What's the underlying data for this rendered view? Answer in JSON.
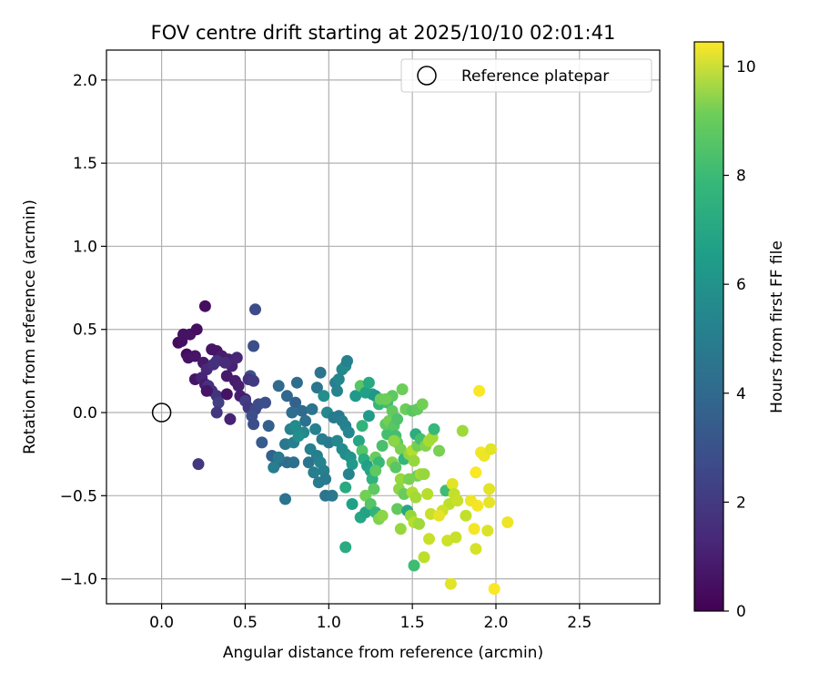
{
  "chart_data": {
    "type": "scatter",
    "title": "FOV centre drift starting at 2025/10/10 02:01:41",
    "xlabel": "Angular distance from reference (arcmin)",
    "ylabel": "Rotation from reference (arcmin)",
    "xlim": [
      -0.33,
      2.98
    ],
    "ylim": [
      -1.15,
      2.18
    ],
    "xticks": [
      0.0,
      0.5,
      1.0,
      1.5,
      2.0,
      2.5
    ],
    "xtick_labels": [
      "0.0",
      "0.5",
      "1.0",
      "1.5",
      "2.0",
      "2.5"
    ],
    "yticks": [
      -1.0,
      -0.5,
      0.0,
      0.5,
      1.0,
      1.5,
      2.0
    ],
    "ytick_labels": [
      "−1.0",
      "−0.5",
      "0.0",
      "0.5",
      "1.0",
      "1.5",
      "2.0"
    ],
    "grid": true,
    "legend": {
      "placement": "top-right",
      "entries": [
        "Reference platepar"
      ]
    },
    "reference_point": {
      "x": 0.0,
      "y": 0.0,
      "label": "Reference platepar"
    },
    "colorbar": {
      "label": "Hours from first FF file",
      "range": [
        0,
        10.45
      ],
      "ticks": [
        0,
        2,
        4,
        6,
        8,
        10
      ],
      "tick_labels": [
        "0",
        "2",
        "4",
        "6",
        "8",
        "10"
      ],
      "colormap": "viridis"
    },
    "series": [
      {
        "name": "FOV centre drift",
        "points": [
          [
            0.26,
            0.64,
            0.4
          ],
          [
            0.1,
            0.42,
            0.3
          ],
          [
            0.12,
            0.43,
            0.4
          ],
          [
            0.13,
            0.47,
            0.5
          ],
          [
            0.17,
            0.47,
            0.5
          ],
          [
            0.21,
            0.5,
            0.4
          ],
          [
            0.15,
            0.35,
            0.3
          ],
          [
            0.16,
            0.33,
            0.5
          ],
          [
            0.2,
            0.34,
            0.6
          ],
          [
            0.25,
            0.3,
            0.7
          ],
          [
            0.3,
            0.38,
            0.6
          ],
          [
            0.33,
            0.37,
            0.6
          ],
          [
            0.36,
            0.34,
            0.8
          ],
          [
            0.4,
            0.32,
            0.9
          ],
          [
            0.42,
            0.28,
            1.0
          ],
          [
            0.45,
            0.33,
            1.1
          ],
          [
            0.27,
            0.26,
            1.2
          ],
          [
            0.31,
            0.29,
            1.4
          ],
          [
            0.33,
            0.31,
            1.5
          ],
          [
            0.38,
            0.3,
            1.3
          ],
          [
            0.2,
            0.2,
            0.6
          ],
          [
            0.24,
            0.21,
            1.1
          ],
          [
            0.26,
            0.17,
            0.8
          ],
          [
            0.28,
            0.16,
            1.5
          ],
          [
            0.3,
            0.13,
            1.4
          ],
          [
            0.33,
            0.1,
            1.6
          ],
          [
            0.39,
            0.22,
            0.7
          ],
          [
            0.44,
            0.19,
            0.8
          ],
          [
            0.46,
            0.16,
            0.9
          ],
          [
            0.47,
            0.1,
            0.9
          ],
          [
            0.27,
            0.13,
            0.6
          ],
          [
            0.39,
            0.11,
            0.5
          ],
          [
            0.5,
            0.08,
            0.7
          ],
          [
            0.53,
            0.22,
            2.6
          ],
          [
            0.52,
            0.2,
            1.5
          ],
          [
            0.55,
            0.19,
            1.8
          ],
          [
            0.34,
            0.06,
            2.0
          ],
          [
            0.33,
            0.0,
            1.7
          ],
          [
            0.41,
            -0.04,
            1.0
          ],
          [
            0.5,
            0.07,
            1.9
          ],
          [
            0.52,
            0.03,
            1.7
          ],
          [
            0.56,
            0.02,
            2.3
          ],
          [
            0.58,
            0.05,
            2.4
          ],
          [
            0.62,
            0.06,
            2.6
          ],
          [
            0.54,
            -0.02,
            2.6
          ],
          [
            0.55,
            -0.07,
            2.5
          ],
          [
            0.56,
            0.62,
            2.4
          ],
          [
            0.55,
            0.4,
            2.5
          ],
          [
            0.22,
            -0.31,
            1.7
          ],
          [
            0.6,
            -0.18,
            3.0
          ],
          [
            0.66,
            -0.26,
            3.3
          ],
          [
            0.69,
            -0.3,
            3.5
          ],
          [
            0.75,
            -0.3,
            3.7
          ],
          [
            0.79,
            -0.3,
            3.8
          ],
          [
            0.74,
            -0.52,
            4.0
          ],
          [
            0.67,
            -0.33,
            4.4
          ],
          [
            0.7,
            -0.27,
            4.3
          ],
          [
            0.74,
            -0.19,
            4.2
          ],
          [
            0.79,
            -0.18,
            4.5
          ],
          [
            0.77,
            -0.1,
            4.7
          ],
          [
            0.64,
            -0.08,
            3.2
          ],
          [
            0.7,
            0.16,
            3.6
          ],
          [
            0.75,
            0.1,
            3.5
          ],
          [
            0.8,
            0.06,
            3.3
          ],
          [
            0.81,
            0.18,
            3.7
          ],
          [
            0.78,
            0.0,
            3.7
          ],
          [
            0.84,
            0.01,
            3.6
          ],
          [
            0.86,
            -0.05,
            3.9
          ],
          [
            0.9,
            0.02,
            4.0
          ],
          [
            0.93,
            0.15,
            4.1
          ],
          [
            0.95,
            0.24,
            4.0
          ],
          [
            0.97,
            0.1,
            5.2
          ],
          [
            0.99,
            0.0,
            4.9
          ],
          [
            0.92,
            -0.1,
            4.6
          ],
          [
            0.96,
            -0.16,
            4.4
          ],
          [
            1.0,
            -0.18,
            4.3
          ],
          [
            0.89,
            -0.22,
            4.6
          ],
          [
            0.93,
            -0.26,
            4.5
          ],
          [
            0.95,
            -0.3,
            4.7
          ],
          [
            0.97,
            -0.35,
            4.5
          ],
          [
            0.98,
            -0.4,
            4.3
          ],
          [
            0.98,
            -0.5,
            4.0
          ],
          [
            1.02,
            -0.5,
            4.2
          ],
          [
            0.88,
            -0.3,
            4.1
          ],
          [
            0.91,
            -0.36,
            4.5
          ],
          [
            0.94,
            -0.42,
            4.3
          ],
          [
            0.85,
            -0.12,
            4.9
          ],
          [
            0.82,
            -0.14,
            5.2
          ],
          [
            0.8,
            -0.08,
            5.0
          ],
          [
            1.04,
            0.18,
            4.4
          ],
          [
            1.06,
            0.2,
            4.8
          ],
          [
            1.08,
            0.26,
            4.9
          ],
          [
            1.1,
            0.28,
            5.0
          ],
          [
            1.11,
            0.31,
            4.6
          ],
          [
            1.05,
            0.13,
            4.7
          ],
          [
            1.03,
            -0.03,
            4.3
          ],
          [
            1.06,
            -0.02,
            4.3
          ],
          [
            1.08,
            -0.05,
            4.5
          ],
          [
            1.1,
            -0.08,
            4.6
          ],
          [
            1.12,
            -0.12,
            4.8
          ],
          [
            1.05,
            -0.17,
            4.9
          ],
          [
            1.08,
            -0.22,
            5.0
          ],
          [
            1.1,
            -0.25,
            5.1
          ],
          [
            1.13,
            -0.27,
            5.3
          ],
          [
            1.14,
            -0.31,
            5.6
          ],
          [
            1.12,
            -0.37,
            4.7
          ],
          [
            1.1,
            -0.45,
            6.3
          ],
          [
            1.14,
            -0.55,
            5.9
          ],
          [
            1.19,
            -0.63,
            6.2
          ],
          [
            1.22,
            -0.6,
            6.0
          ],
          [
            1.1,
            -0.81,
            6.4
          ],
          [
            1.16,
            0.1,
            5.6
          ],
          [
            1.19,
            0.16,
            7.7
          ],
          [
            1.22,
            0.12,
            5.9
          ],
          [
            1.24,
            0.18,
            6.3
          ],
          [
            1.26,
            0.11,
            5.8
          ],
          [
            1.28,
            0.1,
            5.5
          ],
          [
            1.3,
            0.05,
            6.9
          ],
          [
            1.31,
            0.08,
            8.0
          ],
          [
            1.35,
            0.06,
            7.2
          ],
          [
            1.24,
            -0.02,
            5.7
          ],
          [
            1.2,
            -0.08,
            6.8
          ],
          [
            1.18,
            -0.17,
            6.2
          ],
          [
            1.2,
            -0.23,
            7.6
          ],
          [
            1.21,
            -0.28,
            6.5
          ],
          [
            1.23,
            -0.32,
            5.9
          ],
          [
            1.25,
            -0.35,
            6.1
          ],
          [
            1.26,
            -0.4,
            6.7
          ],
          [
            1.27,
            -0.46,
            7.8
          ],
          [
            1.22,
            -0.5,
            8.2
          ],
          [
            1.25,
            -0.55,
            7.6
          ],
          [
            1.28,
            -0.6,
            6.8
          ],
          [
            1.3,
            -0.64,
            8.4
          ],
          [
            1.32,
            -0.62,
            8.6
          ],
          [
            1.28,
            -0.27,
            8.0
          ],
          [
            1.3,
            -0.3,
            7.0
          ],
          [
            1.32,
            -0.2,
            7.4
          ],
          [
            1.35,
            -0.13,
            7.3
          ],
          [
            1.34,
            -0.07,
            7.8
          ],
          [
            1.36,
            -0.05,
            8.2
          ],
          [
            1.39,
            -0.08,
            7.7
          ],
          [
            1.4,
            -0.14,
            7.3
          ],
          [
            1.41,
            -0.18,
            7.9
          ],
          [
            1.43,
            -0.22,
            8.3
          ],
          [
            1.38,
            -0.3,
            8.5
          ],
          [
            1.4,
            -0.33,
            7.7
          ],
          [
            1.43,
            -0.4,
            8.8
          ],
          [
            1.42,
            -0.46,
            8.6
          ],
          [
            1.45,
            -0.49,
            8.0
          ],
          [
            1.41,
            -0.58,
            7.9
          ],
          [
            1.43,
            -0.7,
            8.8
          ],
          [
            1.47,
            -0.59,
            6.2
          ],
          [
            1.5,
            -0.48,
            9.2
          ],
          [
            1.52,
            -0.51,
            9.0
          ],
          [
            1.49,
            -0.62,
            8.8
          ],
          [
            1.51,
            -0.66,
            9.3
          ],
          [
            1.54,
            -0.67,
            8.9
          ],
          [
            1.53,
            -0.38,
            8.2
          ],
          [
            1.55,
            -0.37,
            9.0
          ],
          [
            1.57,
            -0.37,
            8.8
          ],
          [
            1.45,
            -0.28,
            6.9
          ],
          [
            1.48,
            -0.25,
            8.7
          ],
          [
            1.5,
            -0.23,
            9.3
          ],
          [
            1.51,
            -0.29,
            8.8
          ],
          [
            1.53,
            -0.2,
            8.2
          ],
          [
            1.52,
            -0.13,
            6.5
          ],
          [
            1.55,
            -0.16,
            7.3
          ],
          [
            1.58,
            -0.2,
            8.5
          ],
          [
            1.6,
            -0.17,
            9.1
          ],
          [
            1.62,
            -0.15,
            9.0
          ],
          [
            1.59,
            -0.49,
            9.3
          ],
          [
            1.61,
            -0.61,
            9.6
          ],
          [
            1.6,
            -0.76,
            9.6
          ],
          [
            1.57,
            -0.87,
            9.4
          ],
          [
            1.51,
            -0.92,
            7.2
          ],
          [
            1.38,
            0.1,
            7.8
          ],
          [
            1.44,
            0.14,
            8.1
          ],
          [
            1.46,
            0.02,
            8.1
          ],
          [
            1.5,
            0.01,
            7.7
          ],
          [
            1.53,
            0.02,
            7.9
          ],
          [
            1.56,
            0.05,
            8.2
          ],
          [
            1.38,
            0.01,
            7.9
          ],
          [
            1.41,
            -0.04,
            7.5
          ],
          [
            1.28,
            -0.35,
            7.8
          ],
          [
            1.48,
            -0.4,
            8.3
          ],
          [
            1.66,
            -0.23,
            8.3
          ],
          [
            1.7,
            -0.47,
            7.2
          ],
          [
            1.72,
            -0.55,
            9.4
          ],
          [
            1.68,
            -0.59,
            9.7
          ],
          [
            1.66,
            -0.62,
            10.1
          ],
          [
            1.71,
            -0.77,
            9.7
          ],
          [
            1.74,
            -0.43,
            10.0
          ],
          [
            1.75,
            -0.49,
            9.5
          ],
          [
            1.77,
            -0.53,
            9.6
          ],
          [
            1.76,
            -0.75,
            9.6
          ],
          [
            1.73,
            -1.03,
            10.0
          ],
          [
            1.8,
            -0.11,
            8.9
          ],
          [
            1.82,
            -0.62,
            9.5
          ],
          [
            1.85,
            -0.53,
            10.2
          ],
          [
            1.87,
            -0.7,
            10.3
          ],
          [
            1.88,
            -0.82,
            9.8
          ],
          [
            1.88,
            -0.36,
            10.4
          ],
          [
            1.89,
            -0.56,
            10.3
          ],
          [
            1.91,
            -0.24,
            10.3
          ],
          [
            1.93,
            -0.26,
            10.2
          ],
          [
            1.9,
            0.13,
            10.4
          ],
          [
            1.96,
            -0.46,
            10.0
          ],
          [
            1.96,
            -0.54,
            10.1
          ],
          [
            1.95,
            -0.71,
            9.9
          ],
          [
            1.97,
            -0.22,
            10.0
          ],
          [
            1.99,
            -1.06,
            10.4
          ],
          [
            2.07,
            -0.66,
            10.2
          ],
          [
            1.63,
            -0.1,
            7.0
          ],
          [
            1.34,
            0.08,
            8.1
          ],
          [
            1.39,
            -0.17,
            8.6
          ]
        ]
      }
    ]
  }
}
